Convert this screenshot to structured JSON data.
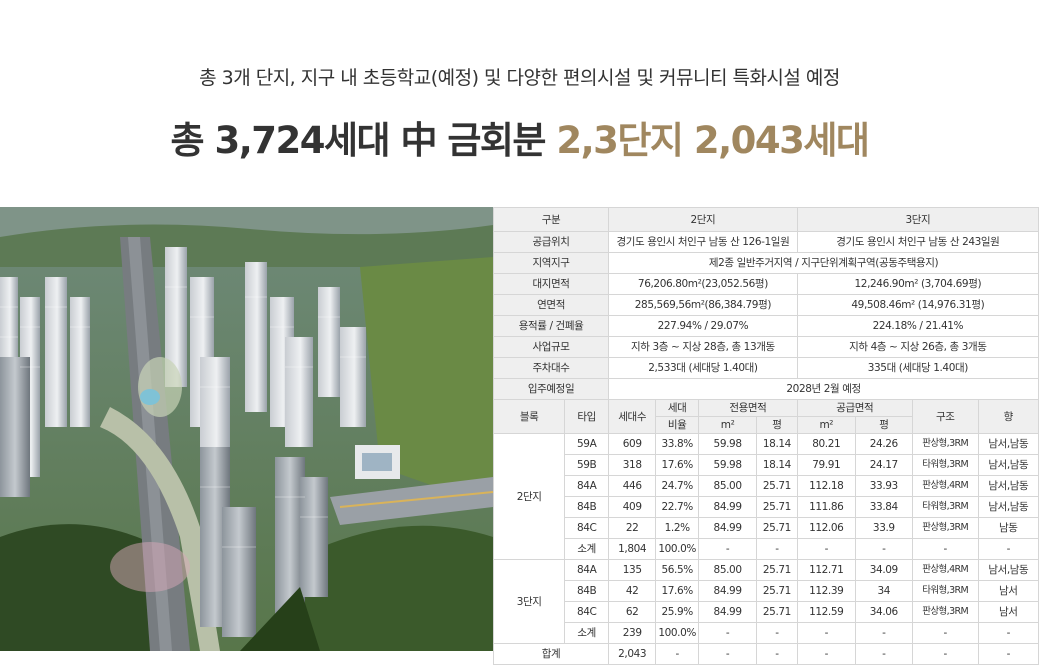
{
  "header": {
    "subtitle": "총 3개 단지, 지구 내 초등학교(예정) 및 다양한 편의시설 및 커뮤니티 특화시설 예정",
    "headline_dark": "총 3,724세대 中 금회분",
    "headline_gold": "2,3단지 2,043세대"
  },
  "colors": {
    "accent_gold": "#a0875f",
    "header_cell_bg": "#efefef",
    "text": "#333333"
  },
  "summary": {
    "col_label": "구분",
    "col_d2": "2단지",
    "col_d3": "3단지",
    "rows": [
      {
        "label": "공급위치",
        "d2": "경기도 용인시 처인구 남동 산 126-1일원",
        "d3": "경기도 용인시 처인구 남동 산 243일원"
      },
      {
        "label": "지역지구",
        "merged": "제2종 일반주거지역 / 지구단위계획구역(공동주택용지)"
      },
      {
        "label": "대지면적",
        "d2": "76,206.80m²(23,052.56평)",
        "d3": "12,246.90m² (3,704.69평)"
      },
      {
        "label": "연면적",
        "d2": "285,569,56m²(86,384.79평)",
        "d3": "49,508.46m² (14,976.31평)"
      },
      {
        "label": "용적률 / 건폐율",
        "d2": "227.94% / 29.07%",
        "d3": "224.18% / 21.41%"
      },
      {
        "label": "사업규모",
        "d2": "지하 3층 ~ 지상 28층, 총 13개동",
        "d3": "지하 4층 ~ 지상 26층, 총 3개동"
      },
      {
        "label": "주차대수",
        "d2": "2,533대 (세대당 1.40대)",
        "d3": "335대 (세대당 1.40대)"
      },
      {
        "label": "입주예정일",
        "merged": "2028년 2월 예정"
      }
    ]
  },
  "units": {
    "headers": {
      "block": "블록",
      "type": "타입",
      "households": "세대수",
      "ratio_top": "세대",
      "ratio_bottom": "비율",
      "exclusive": "전용면적",
      "supply": "공급면적",
      "m2": "m²",
      "pyeong": "평",
      "structure": "구조",
      "orientation": "향"
    },
    "groups": [
      {
        "block": "2단지",
        "rows": [
          [
            "59A",
            "609",
            "33.8%",
            "59.98",
            "18.14",
            "80.21",
            "24.26",
            "판상형,3RM",
            "남서,남동"
          ],
          [
            "59B",
            "318",
            "17.6%",
            "59.98",
            "18.14",
            "79.91",
            "24.17",
            "타워형,3RM",
            "남서,남동"
          ],
          [
            "84A",
            "446",
            "24.7%",
            "85.00",
            "25.71",
            "112.18",
            "33.93",
            "판상형,4RM",
            "남서,남동"
          ],
          [
            "84B",
            "409",
            "22.7%",
            "84.99",
            "25.71",
            "111.86",
            "33.84",
            "타워형,3RM",
            "남서,남동"
          ],
          [
            "84C",
            "22",
            "1.2%",
            "84.99",
            "25.71",
            "112.06",
            "33.9",
            "판상형,3RM",
            "남동"
          ],
          [
            "소계",
            "1,804",
            "100.0%",
            "-",
            "-",
            "-",
            "-",
            "-",
            "-"
          ]
        ]
      },
      {
        "block": "3단지",
        "rows": [
          [
            "84A",
            "135",
            "56.5%",
            "85.00",
            "25.71",
            "112.71",
            "34.09",
            "판상형,4RM",
            "남서,남동"
          ],
          [
            "84B",
            "42",
            "17.6%",
            "84.99",
            "25.71",
            "112.39",
            "34",
            "타워형,3RM",
            "남서"
          ],
          [
            "84C",
            "62",
            "25.9%",
            "84.99",
            "25.71",
            "112.59",
            "34.06",
            "판상형,3RM",
            "남서"
          ],
          [
            "소계",
            "239",
            "100.0%",
            "-",
            "-",
            "-",
            "-",
            "-",
            "-"
          ]
        ]
      }
    ],
    "total": {
      "label": "합계",
      "values": [
        "2,043",
        "-",
        "-",
        "-",
        "-",
        "-",
        "-",
        "-"
      ]
    }
  }
}
